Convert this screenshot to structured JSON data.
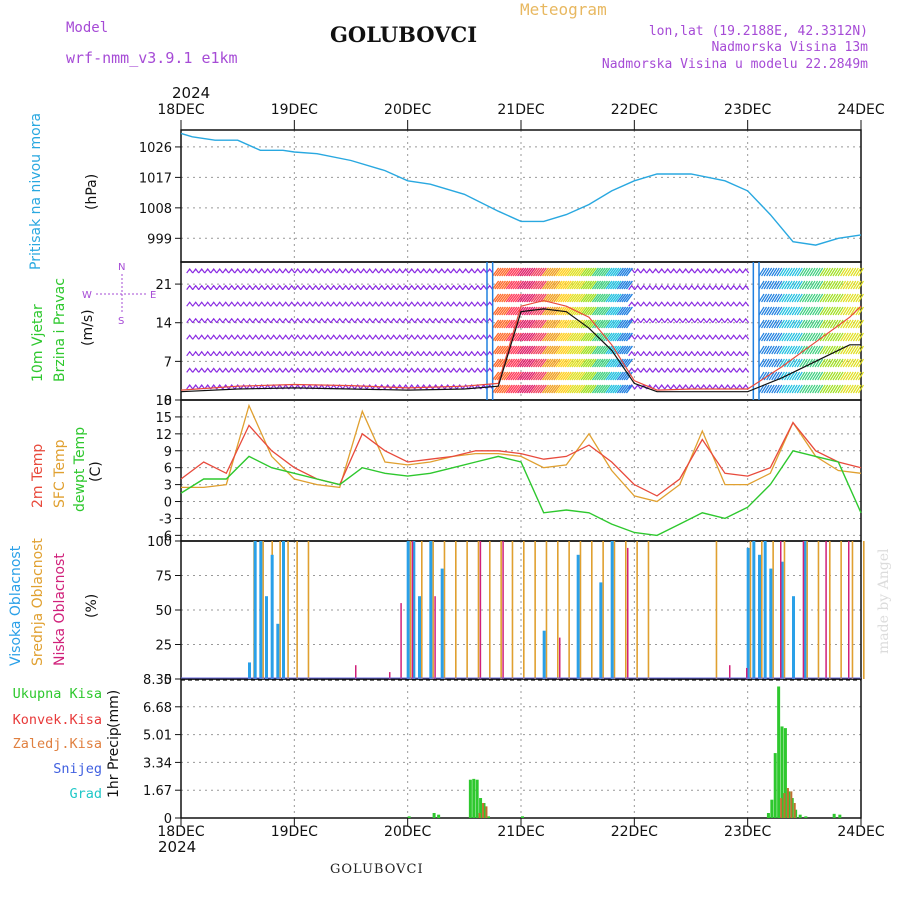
{
  "header": {
    "model_label": "Model",
    "model_name": "wrf-nmm_v3.9.1 e1km",
    "station": "GOLUBOVCI",
    "title": "Meteogram",
    "lonlat": "lon,lat (19.2188E, 42.3312N)",
    "altitude": "Nadmorska Visina 13m",
    "model_altitude": "Nadmorska Visina u modelu 22.2849m",
    "year_top": "2024",
    "year_bottom": "2024",
    "footer_station": "GOLUBOVCI",
    "credit": "made by Angel"
  },
  "colors": {
    "pressure": "#29a8e0",
    "temp2m": "#e84a3c",
    "sfc": "#e0a030",
    "dew": "#2ec82e",
    "high_cloud": "#2aa0e8",
    "mid_cloud": "#e0a030",
    "low_cloud": "#d0207a",
    "precip_total": "#2ec82e",
    "precip_conv": "#e83a3a",
    "wind_barb": "#8a2be2"
  },
  "chart_data": [
    {
      "type": "line",
      "panel": "pressure",
      "ylabel_main": "Pritisak na nivou mora",
      "ylabel_unit": "(hPa)",
      "x_ticks": [
        "18DEC",
        "19DEC",
        "20DEC",
        "21DEC",
        "22DEC",
        "23DEC",
        "24DEC"
      ],
      "yticks": [
        999,
        1008,
        1017,
        1026
      ],
      "ylim": [
        992,
        1031
      ],
      "grid": true,
      "series": [
        {
          "x": [
            0,
            0.1,
            0.3,
            0.5,
            0.7,
            0.9,
            1.0,
            1.2,
            1.5,
            1.8,
            2.0,
            2.2,
            2.5,
            2.8,
            3.0,
            3.2,
            3.4,
            3.6,
            3.8,
            4.0,
            4.2,
            4.5,
            4.8,
            5.0,
            5.2,
            5.4,
            5.6,
            5.8,
            6.0
          ],
          "y": [
            1030,
            1029,
            1028,
            1028,
            1025,
            1025,
            1024.5,
            1024,
            1022,
            1019,
            1016,
            1015,
            1012,
            1007,
            1004,
            1004,
            1006,
            1009,
            1013,
            1016,
            1018,
            1018,
            1016,
            1013,
            1006,
            998,
            997,
            999,
            1000
          ]
        }
      ]
    },
    {
      "type": "line",
      "panel": "wind",
      "ylabel_main": "10m Vjetar",
      "ylabel_sub": "Brzina i Pravac",
      "ylabel_unit": "(m/s)",
      "compass": {
        "n": "N",
        "s": "S",
        "w": "W",
        "e": "E"
      },
      "yticks": [
        0,
        7,
        14,
        21
      ],
      "ylim": [
        0,
        25
      ],
      "grid": true,
      "series": [
        {
          "name": "speed",
          "x": [
            0,
            0.5,
            1.0,
            1.5,
            2.0,
            2.5,
            2.8,
            3.0,
            3.2,
            3.4,
            3.6,
            3.8,
            4.0,
            4.2,
            4.5,
            5.0,
            5.3,
            5.5,
            5.7,
            5.9,
            6.0
          ],
          "y": [
            1.5,
            2.0,
            2.2,
            2.0,
            1.8,
            2.0,
            2.5,
            16,
            16.5,
            16,
            13,
            9,
            3,
            1.5,
            1.5,
            1.5,
            4,
            6,
            8,
            10,
            10
          ]
        },
        {
          "name": "gust",
          "x": [
            0,
            0.5,
            1.0,
            1.5,
            2.0,
            2.5,
            2.8,
            3.0,
            3.2,
            3.4,
            3.6,
            3.8,
            4.0,
            4.2,
            4.5,
            5.0,
            5.3,
            5.5,
            5.7,
            5.9,
            6.0
          ],
          "y": [
            1.8,
            2.5,
            2.8,
            2.6,
            2.2,
            2.5,
            3.0,
            17,
            18,
            17,
            15,
            10,
            3.5,
            1.8,
            2,
            2,
            6,
            9,
            12,
            15,
            17
          ]
        }
      ]
    },
    {
      "type": "line",
      "panel": "temperature",
      "ylabel_main": "2m Temp",
      "ylabel_sub": "SFC Temp",
      "ylabel_sub2": "dewpt Temp",
      "ylabel_unit": "(C)",
      "yticks": [
        -6,
        -3,
        0,
        3,
        6,
        9,
        12,
        15,
        18
      ],
      "ylim": [
        -7,
        18
      ],
      "grid": true,
      "series": [
        {
          "name": "2m",
          "x": [
            0,
            0.2,
            0.4,
            0.6,
            0.8,
            1.0,
            1.2,
            1.4,
            1.6,
            1.8,
            2.0,
            2.2,
            2.4,
            2.6,
            2.8,
            3.0,
            3.2,
            3.4,
            3.6,
            3.8,
            4.0,
            4.2,
            4.4,
            4.6,
            4.8,
            5.0,
            5.2,
            5.4,
            5.6,
            5.8,
            6.0
          ],
          "y": [
            4,
            7,
            5,
            13.5,
            9,
            6,
            4,
            3,
            12,
            9,
            7,
            7.5,
            8,
            9,
            9,
            8.5,
            7.5,
            8,
            10,
            7,
            3,
            1,
            4,
            11,
            5,
            4.5,
            6,
            14,
            9,
            7,
            6
          ]
        },
        {
          "name": "sfc",
          "x": [
            0,
            0.2,
            0.4,
            0.6,
            0.8,
            1.0,
            1.2,
            1.4,
            1.6,
            1.8,
            2.0,
            2.2,
            2.4,
            2.6,
            2.8,
            3.0,
            3.2,
            3.4,
            3.6,
            3.8,
            4.0,
            4.2,
            4.4,
            4.6,
            4.8,
            5.0,
            5.2,
            5.4,
            5.6,
            5.8,
            6.0
          ],
          "y": [
            2.5,
            2.5,
            3,
            17,
            8,
            4,
            3,
            2.5,
            16,
            7,
            6.5,
            7,
            8,
            8.5,
            8.5,
            8,
            6,
            6.5,
            12,
            5.5,
            1,
            0,
            3,
            12.5,
            3,
            3,
            5,
            14,
            8,
            5.5,
            5
          ]
        },
        {
          "name": "dew",
          "x": [
            0,
            0.2,
            0.4,
            0.6,
            0.8,
            1.0,
            1.2,
            1.4,
            1.6,
            1.8,
            2.0,
            2.2,
            2.4,
            2.6,
            2.8,
            3.0,
            3.2,
            3.4,
            3.6,
            3.8,
            4.0,
            4.2,
            4.4,
            4.6,
            4.8,
            5.0,
            5.2,
            5.4,
            5.6,
            5.8,
            6.0
          ],
          "y": [
            1.5,
            4,
            4,
            8,
            6,
            5,
            4,
            3,
            6,
            5,
            4.5,
            5,
            6,
            7,
            8,
            7,
            -2,
            -1.5,
            -2,
            -4,
            -5.5,
            -6,
            -4,
            -2,
            -3,
            -1,
            3,
            9,
            8,
            7,
            -2
          ]
        }
      ]
    },
    {
      "type": "bar",
      "panel": "cloud",
      "ylabel_main": "Visoka Oblacnost",
      "ylabel_sub": "Srednja Oblacnost",
      "ylabel_sub2": "Niska Oblacnost",
      "ylabel_unit": "(%)",
      "yticks": [
        0,
        25,
        50,
        75,
        100
      ],
      "ylim": [
        0,
        100
      ],
      "grid": true,
      "series": [
        {
          "name": "high",
          "x": [
            0.6,
            0.65,
            0.7,
            0.75,
            0.8,
            0.85,
            0.9,
            2.0,
            2.05,
            2.1,
            2.2,
            2.3,
            3.2,
            3.5,
            3.7,
            3.8,
            5.0,
            5.05,
            5.1,
            5.15,
            5.2,
            5.3,
            5.4,
            5.5
          ],
          "values": [
            12,
            100,
            100,
            60,
            90,
            40,
            100,
            100,
            100,
            60,
            100,
            80,
            35,
            90,
            70,
            100,
            95,
            100,
            90,
            100,
            80,
            85,
            60,
            100
          ]
        },
        {
          "name": "mid",
          "x": [
            0.62,
            0.7,
            0.78,
            0.85,
            0.92,
            1.0,
            1.1,
            2.0,
            2.1,
            2.2,
            2.3,
            2.4,
            2.5,
            2.6,
            2.7,
            2.8,
            2.9,
            3.0,
            3.1,
            3.2,
            3.3,
            3.4,
            3.5,
            3.6,
            3.7,
            3.8,
            3.9,
            4.0,
            4.1,
            4.7,
            5.0,
            5.1,
            5.2,
            5.3,
            5.5,
            5.6,
            5.7,
            5.8,
            5.9,
            6.0
          ],
          "values": [
            100,
            100,
            100,
            100,
            100,
            100,
            100,
            100,
            100,
            100,
            100,
            100,
            100,
            100,
            100,
            100,
            100,
            100,
            100,
            100,
            100,
            100,
            100,
            100,
            100,
            100,
            100,
            100,
            100,
            100,
            100,
            100,
            100,
            100,
            100,
            100,
            100,
            100,
            100,
            100
          ]
        },
        {
          "name": "low",
          "x": [
            1.5,
            1.8,
            1.9,
            2.0,
            2.2,
            2.6,
            2.8,
            3.3,
            3.9,
            4.8,
            4.95,
            5.25,
            5.45,
            5.65,
            5.85
          ],
          "values": [
            10,
            5,
            55,
            100,
            60,
            100,
            100,
            30,
            95,
            10,
            8,
            100,
            100,
            100,
            100
          ]
        }
      ]
    },
    {
      "type": "bar",
      "panel": "precip",
      "ylabel_main": "1hr Precip",
      "ylabel_unit": "(mm)",
      "yticks": [
        0,
        1.67,
        3.34,
        5.01,
        6.68,
        8.35
      ],
      "ylim": [
        0,
        8.35
      ],
      "grid": true,
      "legend": [
        "Ukupna Kisa",
        "Konvek.Kisa",
        "Zaledj.Kisa",
        "Snijeg",
        "Grad"
      ],
      "legend_colors": [
        "#2ec82e",
        "#e83a3a",
        "#e08040",
        "#4060e0",
        "#20c8c8"
      ],
      "series": [
        {
          "name": "total",
          "x": [
            2.0,
            2.22,
            2.26,
            2.54,
            2.57,
            2.6,
            2.63,
            2.66,
            2.7,
            3.0,
            5.17,
            5.2,
            5.23,
            5.26,
            5.29,
            5.32,
            5.35,
            5.38,
            5.41,
            5.45,
            5.5,
            5.75,
            5.8
          ],
          "values": [
            0.1,
            0.3,
            0.2,
            2.3,
            2.35,
            2.3,
            1.2,
            0.9,
            0.1,
            0.1,
            0.3,
            1.1,
            3.9,
            7.9,
            5.5,
            5.4,
            1.6,
            1.2,
            0.5,
            0.2,
            0.1,
            0.25,
            0.2
          ]
        },
        {
          "name": "conv",
          "x": [
            2.6,
            2.63,
            2.66,
            5.26,
            5.29,
            5.32,
            5.35,
            5.38
          ],
          "values": [
            0.3,
            0.9,
            0.7,
            1.2,
            1.5,
            1.8,
            1.6,
            0.9
          ]
        }
      ]
    }
  ]
}
